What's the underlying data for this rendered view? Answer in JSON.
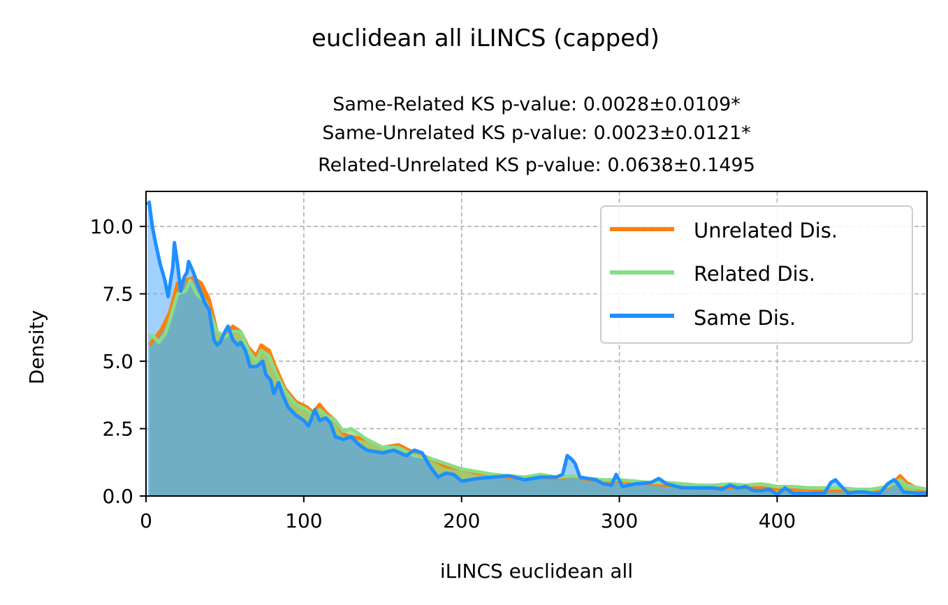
{
  "chart_data": {
    "type": "area",
    "suptitle": "euclidean all iLINCS (capped)",
    "title_lines": [
      "Same-Related KS p-value: 0.0028±0.0109*",
      "Same-Unrelated KS p-value: 0.0023±0.0121*",
      "Related-Unrelated KS p-value: 0.0638±0.1495"
    ],
    "xlabel": "iLINCS euclidean all",
    "ylabel": "Density",
    "xlim": [
      0,
      495
    ],
    "ylim": [
      0,
      11.3
    ],
    "xticks": [
      0,
      100,
      200,
      300,
      400
    ],
    "xtick_labels": [
      "0",
      "100",
      "200",
      "300",
      "400"
    ],
    "yticks": [
      0,
      2.5,
      5,
      7.5,
      10
    ],
    "ytick_labels": [
      "0.0",
      "2.5",
      "5.0",
      "7.5",
      "10.0"
    ],
    "grid": true,
    "legend_position": "upper right",
    "series": [
      {
        "name": "Unrelated Dis.",
        "color": "#ff7f0e",
        "points": [
          [
            2,
            5.6
          ],
          [
            5,
            5.8
          ],
          [
            10,
            6.2
          ],
          [
            15,
            6.8
          ],
          [
            20,
            7.9
          ],
          [
            25,
            8.0
          ],
          [
            30,
            8.1
          ],
          [
            35,
            7.9
          ],
          [
            40,
            7.3
          ],
          [
            45,
            6.1
          ],
          [
            50,
            5.9
          ],
          [
            55,
            6.3
          ],
          [
            60,
            6.1
          ],
          [
            65,
            5.5
          ],
          [
            70,
            5.2
          ],
          [
            73,
            5.6
          ],
          [
            78,
            5.4
          ],
          [
            82,
            4.8
          ],
          [
            88,
            4.0
          ],
          [
            95,
            3.5
          ],
          [
            102,
            3.3
          ],
          [
            106,
            3.1
          ],
          [
            110,
            3.4
          ],
          [
            114,
            3.1
          ],
          [
            120,
            2.8
          ],
          [
            125,
            2.3
          ],
          [
            130,
            2.2
          ],
          [
            140,
            2.1
          ],
          [
            150,
            1.8
          ],
          [
            160,
            1.9
          ],
          [
            170,
            1.6
          ],
          [
            180,
            1.4
          ],
          [
            190,
            1.1
          ],
          [
            200,
            1.0
          ],
          [
            210,
            0.85
          ],
          [
            220,
            0.8
          ],
          [
            230,
            0.7
          ],
          [
            240,
            0.65
          ],
          [
            250,
            0.7
          ],
          [
            260,
            0.65
          ],
          [
            270,
            0.75
          ],
          [
            280,
            0.6
          ],
          [
            290,
            0.55
          ],
          [
            300,
            0.55
          ],
          [
            310,
            0.5
          ],
          [
            320,
            0.45
          ],
          [
            330,
            0.4
          ],
          [
            340,
            0.35
          ],
          [
            350,
            0.3
          ],
          [
            360,
            0.3
          ],
          [
            370,
            0.3
          ],
          [
            380,
            0.3
          ],
          [
            390,
            0.3
          ],
          [
            400,
            0.25
          ],
          [
            410,
            0.25
          ],
          [
            420,
            0.25
          ],
          [
            430,
            0.2
          ],
          [
            440,
            0.2
          ],
          [
            450,
            0.2
          ],
          [
            460,
            0.2
          ],
          [
            470,
            0.3
          ],
          [
            478,
            0.75
          ],
          [
            482,
            0.5
          ],
          [
            490,
            0.25
          ],
          [
            495,
            0.2
          ]
        ]
      },
      {
        "name": "Related Dis.",
        "color": "#88dd88",
        "points": [
          [
            2,
            6.0
          ],
          [
            5,
            5.9
          ],
          [
            8,
            5.7
          ],
          [
            12,
            6.0
          ],
          [
            15,
            6.5
          ],
          [
            20,
            7.5
          ],
          [
            25,
            7.6
          ],
          [
            28,
            8.0
          ],
          [
            32,
            7.5
          ],
          [
            38,
            7.2
          ],
          [
            45,
            6.1
          ],
          [
            50,
            5.9
          ],
          [
            55,
            6.1
          ],
          [
            60,
            6.1
          ],
          [
            65,
            5.4
          ],
          [
            70,
            5.0
          ],
          [
            73,
            5.4
          ],
          [
            78,
            5.2
          ],
          [
            82,
            4.6
          ],
          [
            88,
            3.9
          ],
          [
            95,
            3.4
          ],
          [
            102,
            3.2
          ],
          [
            106,
            3.0
          ],
          [
            110,
            3.2
          ],
          [
            114,
            3.0
          ],
          [
            120,
            2.8
          ],
          [
            125,
            2.4
          ],
          [
            130,
            2.5
          ],
          [
            140,
            2.1
          ],
          [
            150,
            1.8
          ],
          [
            160,
            1.8
          ],
          [
            170,
            1.5
          ],
          [
            180,
            1.4
          ],
          [
            190,
            1.2
          ],
          [
            200,
            1.0
          ],
          [
            210,
            0.9
          ],
          [
            220,
            0.8
          ],
          [
            230,
            0.75
          ],
          [
            240,
            0.7
          ],
          [
            250,
            0.8
          ],
          [
            260,
            0.7
          ],
          [
            270,
            0.75
          ],
          [
            280,
            0.65
          ],
          [
            290,
            0.6
          ],
          [
            300,
            0.6
          ],
          [
            310,
            0.55
          ],
          [
            320,
            0.5
          ],
          [
            330,
            0.5
          ],
          [
            340,
            0.45
          ],
          [
            350,
            0.4
          ],
          [
            360,
            0.4
          ],
          [
            370,
            0.45
          ],
          [
            380,
            0.4
          ],
          [
            390,
            0.45
          ],
          [
            400,
            0.35
          ],
          [
            410,
            0.35
          ],
          [
            420,
            0.3
          ],
          [
            430,
            0.3
          ],
          [
            440,
            0.3
          ],
          [
            450,
            0.25
          ],
          [
            460,
            0.25
          ],
          [
            470,
            0.35
          ],
          [
            478,
            0.6
          ],
          [
            482,
            0.4
          ],
          [
            490,
            0.3
          ],
          [
            495,
            0.25
          ]
        ]
      },
      {
        "name": "Same Dis.",
        "color": "#1f8fff",
        "points": [
          [
            1,
            10.8
          ],
          [
            2,
            10.9
          ],
          [
            4,
            10.0
          ],
          [
            6,
            9.4
          ],
          [
            9,
            8.6
          ],
          [
            12,
            8.0
          ],
          [
            14,
            7.4
          ],
          [
            17,
            8.5
          ],
          [
            18,
            9.4
          ],
          [
            20,
            8.6
          ],
          [
            22,
            7.6
          ],
          [
            24,
            8.1
          ],
          [
            26,
            8.3
          ],
          [
            27,
            8.7
          ],
          [
            30,
            8.3
          ],
          [
            33,
            7.8
          ],
          [
            37,
            7.2
          ],
          [
            40,
            6.9
          ],
          [
            43,
            5.8
          ],
          [
            45,
            5.6
          ],
          [
            47,
            5.7
          ],
          [
            50,
            6.1
          ],
          [
            52,
            6.3
          ],
          [
            55,
            5.8
          ],
          [
            58,
            5.6
          ],
          [
            60,
            5.7
          ],
          [
            63,
            5.4
          ],
          [
            66,
            4.8
          ],
          [
            70,
            4.8
          ],
          [
            74,
            5.0
          ],
          [
            76,
            4.5
          ],
          [
            79,
            4.3
          ],
          [
            81,
            3.8
          ],
          [
            84,
            4.2
          ],
          [
            87,
            3.7
          ],
          [
            90,
            3.3
          ],
          [
            95,
            3.0
          ],
          [
            100,
            2.8
          ],
          [
            103,
            2.6
          ],
          [
            107,
            3.2
          ],
          [
            110,
            2.8
          ],
          [
            114,
            2.9
          ],
          [
            117,
            2.7
          ],
          [
            120,
            2.2
          ],
          [
            125,
            2.1
          ],
          [
            130,
            2.2
          ],
          [
            135,
            1.9
          ],
          [
            140,
            1.7
          ],
          [
            150,
            1.6
          ],
          [
            157,
            1.7
          ],
          [
            165,
            1.5
          ],
          [
            170,
            1.7
          ],
          [
            175,
            1.6
          ],
          [
            180,
            1.1
          ],
          [
            185,
            0.7
          ],
          [
            190,
            0.85
          ],
          [
            195,
            0.8
          ],
          [
            200,
            0.55
          ],
          [
            210,
            0.65
          ],
          [
            220,
            0.7
          ],
          [
            230,
            0.75
          ],
          [
            240,
            0.6
          ],
          [
            250,
            0.7
          ],
          [
            260,
            0.7
          ],
          [
            264,
            0.8
          ],
          [
            267,
            1.5
          ],
          [
            270,
            1.35
          ],
          [
            272,
            1.2
          ],
          [
            275,
            0.7
          ],
          [
            280,
            0.65
          ],
          [
            285,
            0.6
          ],
          [
            290,
            0.45
          ],
          [
            295,
            0.4
          ],
          [
            298,
            0.8
          ],
          [
            302,
            0.35
          ],
          [
            310,
            0.45
          ],
          [
            320,
            0.5
          ],
          [
            325,
            0.65
          ],
          [
            330,
            0.45
          ],
          [
            340,
            0.3
          ],
          [
            350,
            0.3
          ],
          [
            360,
            0.3
          ],
          [
            365,
            0.25
          ],
          [
            370,
            0.4
          ],
          [
            375,
            0.3
          ],
          [
            380,
            0.35
          ],
          [
            385,
            0.2
          ],
          [
            390,
            0.2
          ],
          [
            395,
            0.25
          ],
          [
            400,
            0.05
          ],
          [
            405,
            0.3
          ],
          [
            410,
            0.1
          ],
          [
            420,
            0.1
          ],
          [
            430,
            0.1
          ],
          [
            434,
            0.5
          ],
          [
            437,
            0.6
          ],
          [
            440,
            0.4
          ],
          [
            445,
            0.1
          ],
          [
            450,
            0.15
          ],
          [
            455,
            0.15
          ],
          [
            460,
            0.1
          ],
          [
            465,
            0.1
          ],
          [
            470,
            0.45
          ],
          [
            474,
            0.6
          ],
          [
            476,
            0.5
          ],
          [
            480,
            0.15
          ],
          [
            490,
            0.1
          ],
          [
            495,
            0.1
          ]
        ]
      }
    ],
    "fill_colors": {
      "Unrelated Dis.": "#ff7f0e",
      "Related Dis.": "#88dd88",
      "Same Dis.": "#55aaff",
      "overlap": "#70afc3"
    }
  }
}
